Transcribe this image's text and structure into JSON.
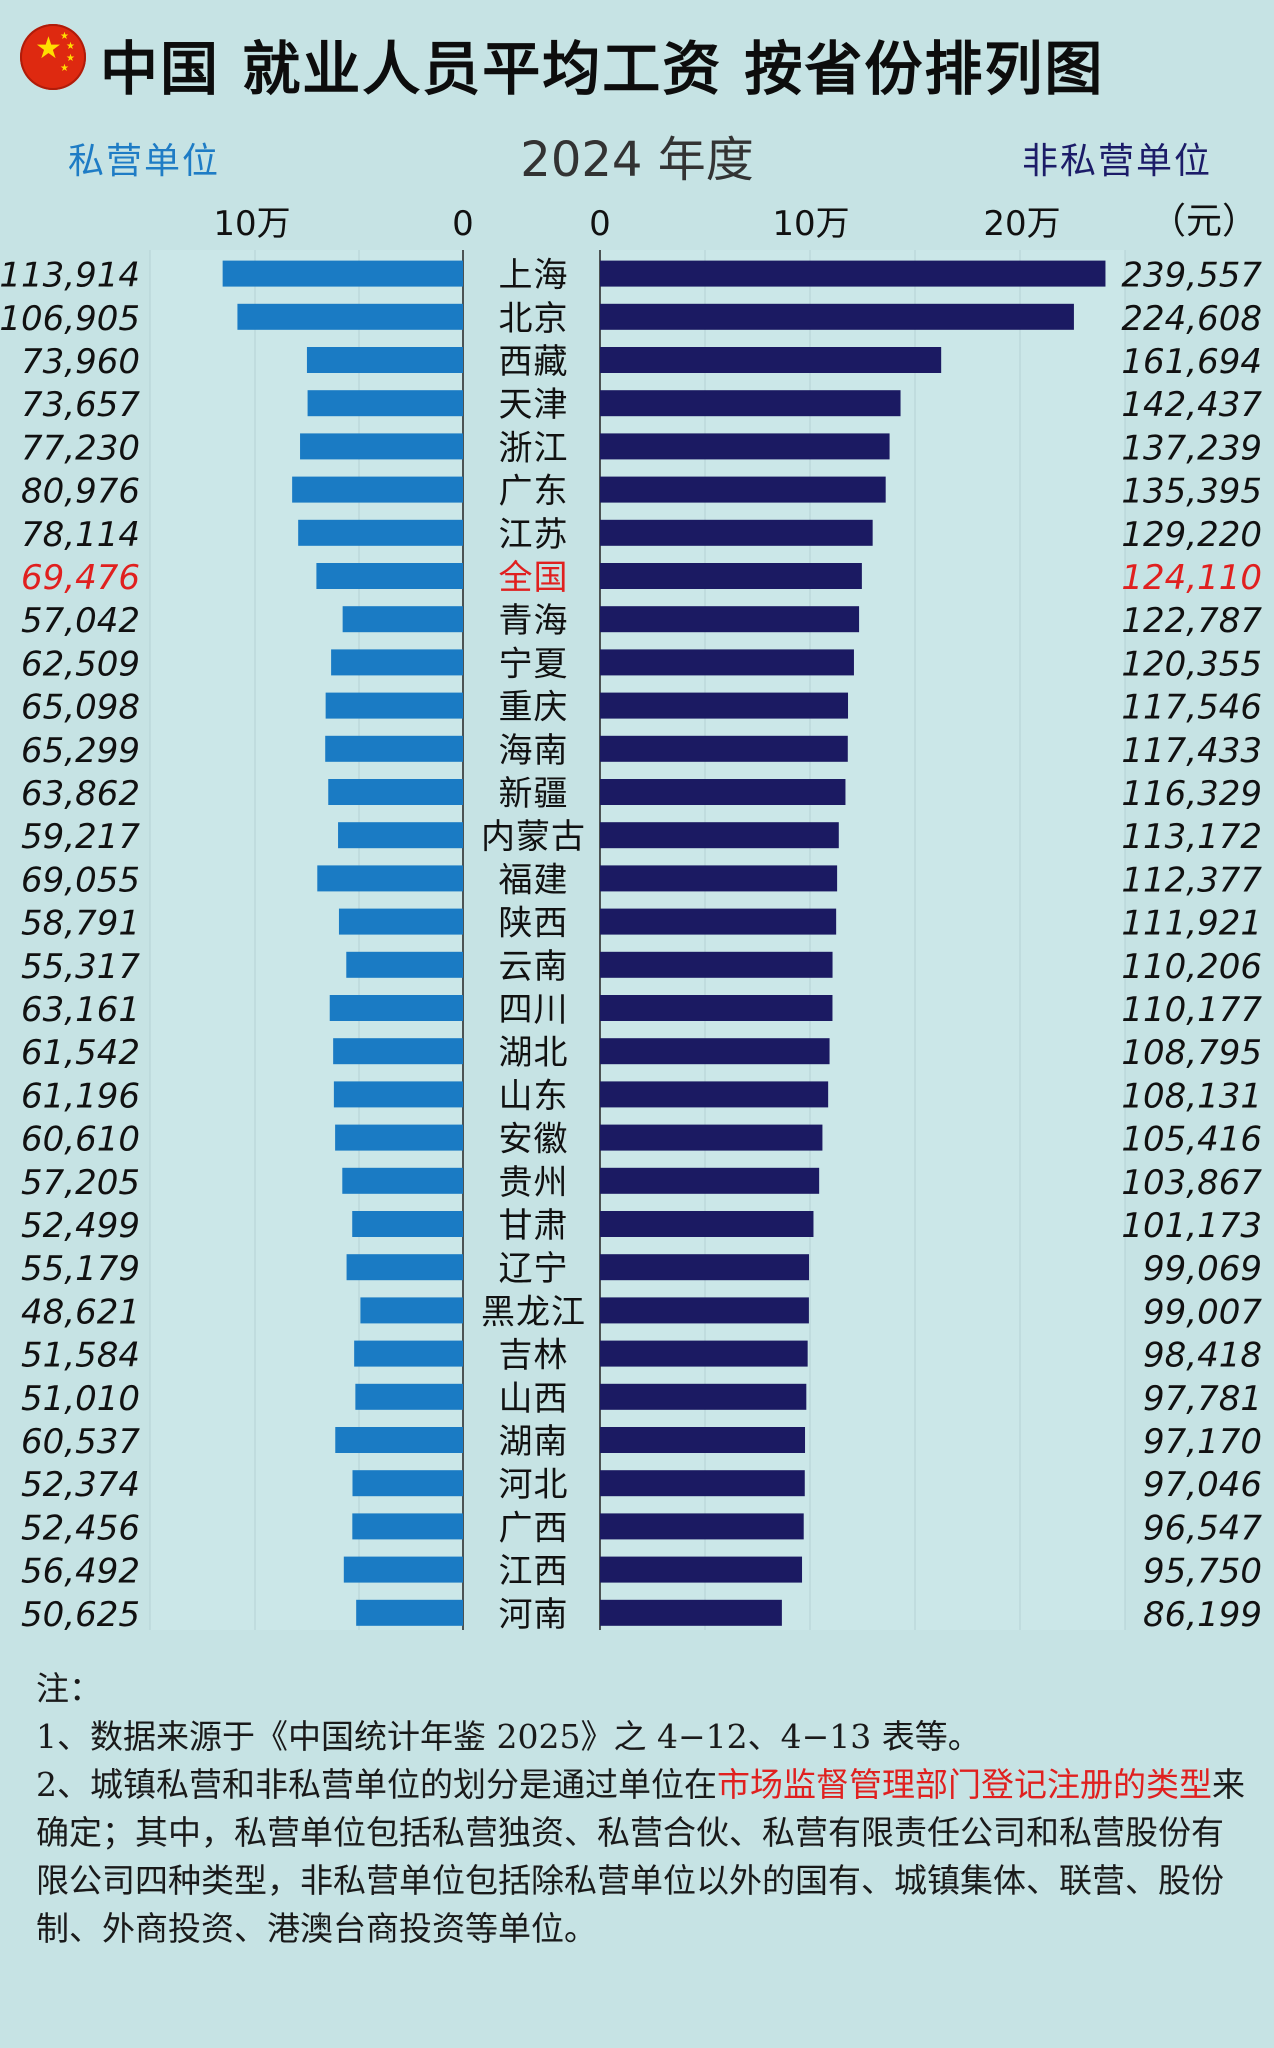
{
  "header": {
    "title": "中国 就业人员平均工资 按省份排列图",
    "subtitle": "2024 年度",
    "left_label": "私营单位",
    "right_label": "非私营单位",
    "unit": "（元）",
    "flag_icon": "china-flag-icon"
  },
  "colors": {
    "private_bar": "#1a7bc4",
    "nonprivate_bar": "#1b1a62",
    "highlight": "#e0201f",
    "background": "#c6e3e4"
  },
  "chart_data": {
    "type": "bar",
    "orientation": "horizontal",
    "layout": "back-to-back",
    "title": "中国 就业人员平均工资 按省份排列图",
    "subtitle": "2024 年度",
    "unit": "（元）",
    "highlight_category": "全国",
    "categories": [
      "上海",
      "北京",
      "西藏",
      "天津",
      "浙江",
      "广东",
      "江苏",
      "全国",
      "青海",
      "宁夏",
      "重庆",
      "海南",
      "新疆",
      "内蒙古",
      "福建",
      "陕西",
      "云南",
      "四川",
      "湖北",
      "山东",
      "安徽",
      "贵州",
      "甘肃",
      "辽宁",
      "黑龙江",
      "吉林",
      "山西",
      "湖南",
      "河北",
      "广西",
      "江西",
      "河南"
    ],
    "series": [
      {
        "name": "私营单位",
        "side": "left",
        "values": [
          113914,
          106905,
          73960,
          73657,
          77230,
          80976,
          78114,
          69476,
          57042,
          62509,
          65098,
          65299,
          63862,
          59217,
          69055,
          58791,
          55317,
          63161,
          61542,
          61196,
          60610,
          57205,
          52499,
          55179,
          48621,
          51584,
          51010,
          60537,
          52374,
          52456,
          56492,
          50625
        ],
        "labels": [
          "113,914",
          "106,905",
          "73,960",
          "73,657",
          "77,230",
          "80,976",
          "78,114",
          "69,476",
          "57,042",
          "62,509",
          "65,098",
          "65,299",
          "63,862",
          "59,217",
          "69,055",
          "58,791",
          "55,317",
          "63,161",
          "61,542",
          "61,196",
          "60,610",
          "57,205",
          "52,499",
          "55,179",
          "48,621",
          "51,584",
          "51,010",
          "60,537",
          "52,374",
          "52,456",
          "56,492",
          "50,625"
        ]
      },
      {
        "name": "非私营单位",
        "side": "right",
        "values": [
          239557,
          224608,
          161694,
          142437,
          137239,
          135395,
          129220,
          124110,
          122787,
          120355,
          117546,
          117433,
          116329,
          113172,
          112377,
          111921,
          110206,
          110177,
          108795,
          108131,
          105416,
          103867,
          101173,
          99069,
          99007,
          98418,
          97781,
          97170,
          97046,
          96547,
          95750,
          86199
        ],
        "labels": [
          "239,557",
          "224,608",
          "161,694",
          "142,437",
          "137,239",
          "135,395",
          "129,220",
          "124,110",
          "122,787",
          "120,355",
          "117,546",
          "117,433",
          "116,329",
          "113,172",
          "112,377",
          "111,921",
          "110,206",
          "110,177",
          "108,795",
          "108,131",
          "105,416",
          "103,867",
          "101,173",
          "99,069",
          "99,007",
          "98,418",
          "97,781",
          "97,170",
          "97,046",
          "96,547",
          "95,750",
          "86,199"
        ]
      }
    ],
    "left_axis": {
      "ticks": [
        100000,
        0
      ],
      "tick_labels": [
        "10万",
        "0"
      ],
      "range": [
        0,
        120000
      ]
    },
    "right_axis": {
      "ticks": [
        0,
        100000,
        200000
      ],
      "tick_labels": [
        "0",
        "10万",
        "20万"
      ],
      "range": [
        0,
        250000
      ]
    },
    "grid": true
  },
  "notes": {
    "heading": "注：",
    "line1": "1、数据来源于《中国统计年鉴 2025》之 4−12、4−13 表等。",
    "line2_a": "2、城镇私营和非私营单位的划分是通过单位在",
    "line2_highlight": "市场监督管理部门登记注册的类型",
    "line2_b": "来确定；其中，私营单位包括私营独资、私营合伙、私营有限责任公司和私营股份有限公司四种类型，非私营单位包括除私营单位以外的国有、城镇集体、联营、股份制、外商投资、港澳台商投资等单位。"
  }
}
